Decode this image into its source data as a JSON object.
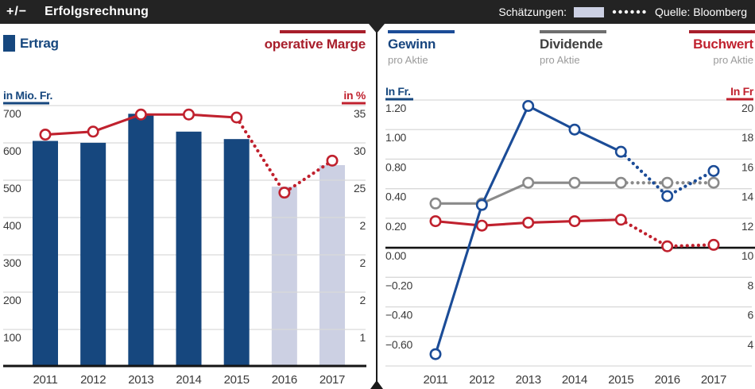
{
  "header": {
    "plusminus": "+/−",
    "title": "Erfolgsrechnung",
    "estimates_label": "Schätzungen:",
    "source": "Quelle: Bloomberg"
  },
  "left_panel": {
    "bar_legend": "Ertrag",
    "line_legend": "operative Marge"
  },
  "right_panel": {
    "headers": [
      {
        "name": "Gewinn",
        "sub": "pro Aktie"
      },
      {
        "name": "Dividende",
        "sub": "pro Aktie"
      },
      {
        "name": "Buchwert",
        "sub": "pro Aktie"
      }
    ]
  },
  "colors": {
    "header_bg": "#232323",
    "navy_bar": "#16477e",
    "blue_line": "#1b4c97",
    "red": "#c0212e",
    "dark_red": "#a81e2b",
    "gray_line": "#8a8a8a",
    "gray_bar": "#6e6e6e",
    "lavender_estimate": "#ccd0e3",
    "grid": "#d9d9d9",
    "axis_black": "#141414",
    "tick_text": "#3a3a3a",
    "sub_text": "#9b9b9b"
  },
  "chart_data": [
    {
      "type": "bar",
      "title": "Erfolgsrechnung — Ertrag und operative Marge",
      "categories": [
        "2011",
        "2012",
        "2013",
        "2014",
        "2015",
        "2016",
        "2017"
      ],
      "estimate_from_index": 5,
      "series": [
        {
          "name": "Ertrag",
          "type": "bar",
          "axis": "left",
          "unit": "Mio. Fr.",
          "values": [
            605,
            600,
            678,
            630,
            610,
            482,
            540
          ]
        },
        {
          "name": "operative Marge",
          "type": "line",
          "axis": "right",
          "unit": "%",
          "values": [
            31.1,
            31.5,
            33.8,
            33.8,
            33.4,
            23.3,
            27.6
          ]
        }
      ],
      "left_axis": {
        "label": "in Mio. Fr.",
        "ticks": [
          "700",
          "600",
          "500",
          "400",
          "300",
          "200",
          "100"
        ],
        "ylim": [
          0,
          770
        ]
      },
      "right_axis": {
        "label": "in %",
        "ticks": [
          "35",
          "30",
          "25",
          "2",
          "2",
          "2",
          "1"
        ],
        "ylim": [
          0,
          38.5
        ]
      },
      "grid": true,
      "legend_position": "top"
    },
    {
      "type": "line",
      "title": "Gewinn, Dividende und Buchwert pro Aktie",
      "categories": [
        "2011",
        "2012",
        "2013",
        "2014",
        "2015",
        "2016",
        "2017"
      ],
      "estimate_from_index": 5,
      "series": [
        {
          "name": "Dividende pro Aktie",
          "axis": "left",
          "unit": "Fr.",
          "values": [
            0.3,
            0.3,
            0.44,
            0.44,
            0.44,
            0.44,
            0.44
          ]
        },
        {
          "name": "Buchwert pro Aktie",
          "axis": "right",
          "unit": "Fr.",
          "values": [
            11.8,
            11.5,
            11.7,
            11.8,
            11.9,
            10.1,
            10.2
          ]
        },
        {
          "name": "Gewinn pro Aktie",
          "axis": "left",
          "unit": "Fr.",
          "values": [
            -0.72,
            0.29,
            0.96,
            0.8,
            0.65,
            0.35,
            0.52
          ]
        }
      ],
      "left_axis": {
        "label": "In Fr.",
        "ticks": [
          "1.20",
          "1.00",
          "0.80",
          "0.40",
          "0.20",
          "0.00",
          "−0.20",
          "−0.40",
          "−0.60"
        ],
        "zero_line_tick": "0.00"
      },
      "right_axis": {
        "label": "In Fr",
        "ticks": [
          "20",
          "18",
          "16",
          "14",
          "12",
          "10",
          "8",
          "6",
          "4"
        ]
      },
      "grid": true,
      "legend_position": "top"
    }
  ]
}
